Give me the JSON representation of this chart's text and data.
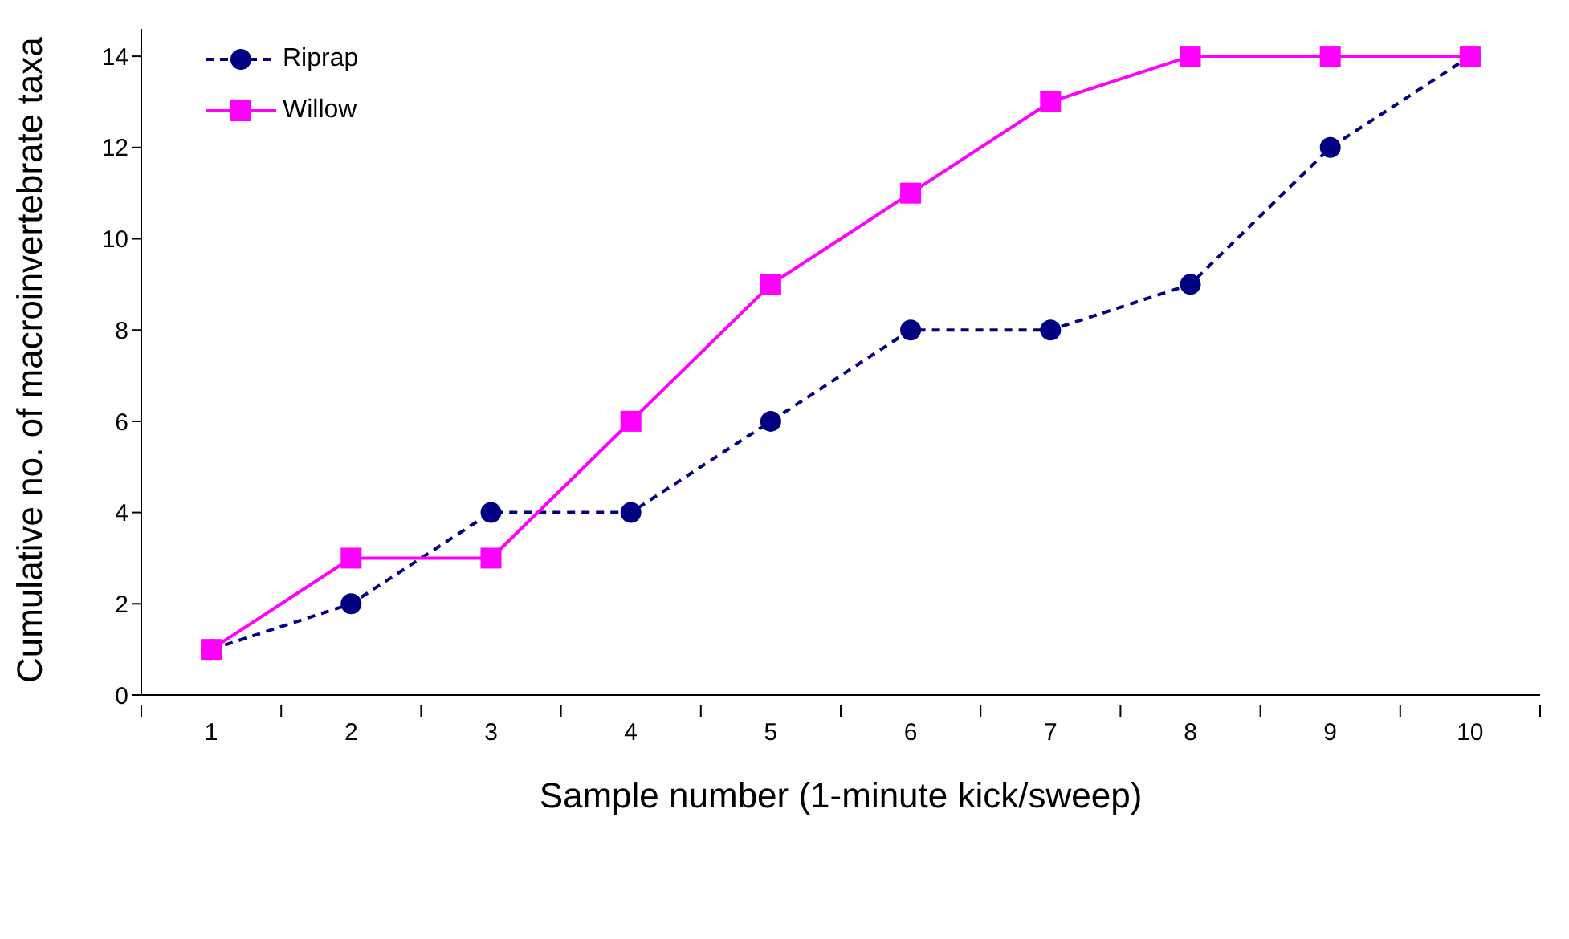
{
  "chart_data": {
    "type": "line",
    "xlabel": "Sample number (1-minute kick/sweep)",
    "ylabel": "Cumulative no. of macroinvertebrate taxa",
    "categories": [
      "1",
      "2",
      "3",
      "4",
      "5",
      "6",
      "7",
      "8",
      "9",
      "10"
    ],
    "series": [
      {
        "name": "Riprap",
        "color": "#000080",
        "marker": "circle",
        "line_style": "dashed",
        "values": [
          1,
          2,
          4,
          4,
          6,
          8,
          8,
          9,
          12,
          14
        ]
      },
      {
        "name": "Willow",
        "color": "#ff00ff",
        "marker": "square",
        "line_style": "solid",
        "values": [
          1,
          3,
          3,
          6,
          9,
          11,
          13,
          14,
          14,
          14
        ]
      }
    ],
    "ylim": [
      0,
      14.6
    ],
    "yticks": [
      0,
      2,
      4,
      6,
      8,
      10,
      12,
      14
    ],
    "grid": false,
    "legend": "top left"
  }
}
